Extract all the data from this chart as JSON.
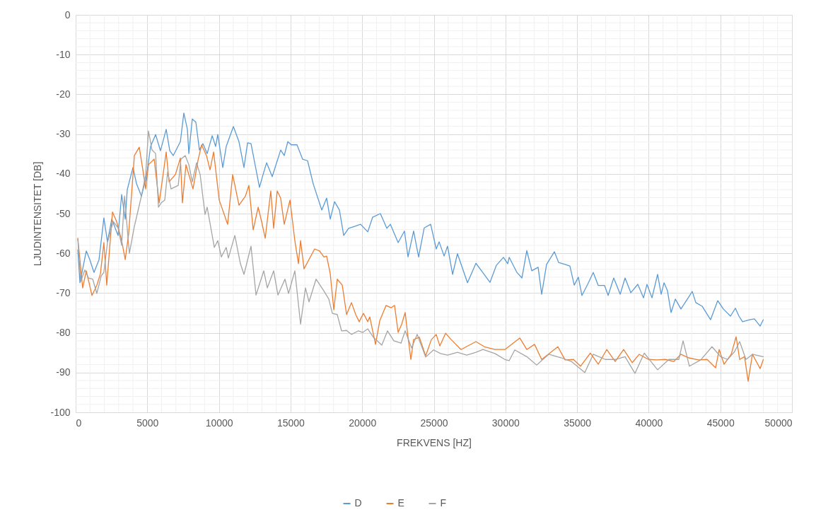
{
  "chart_data": {
    "type": "line",
    "xlabel": "FREKVENS [HZ]",
    "ylabel": "LJUDINTENSITET [DB]",
    "xlim": [
      0,
      50000
    ],
    "ylim": [
      -100,
      0
    ],
    "xticks": [
      0,
      {
        "value": 1000,
        "label": null
      },
      {
        "value": 2000,
        "label": null
      },
      {
        "value": 3000,
        "label": null
      },
      {
        "value": 4000,
        "label": null
      },
      5000,
      {
        "value": 6000,
        "label": null
      },
      {
        "value": 7000,
        "label": null
      },
      {
        "value": 8000,
        "label": null
      },
      {
        "value": 9000,
        "label": null
      },
      10000,
      {
        "value": 11000,
        "label": null
      },
      {
        "value": 12000,
        "label": null
      },
      {
        "value": 13000,
        "label": null
      },
      {
        "value": 14000,
        "label": null
      },
      15000,
      {
        "value": 16000,
        "label": null
      },
      {
        "value": 17000,
        "label": null
      },
      {
        "value": 18000,
        "label": null
      },
      {
        "value": 19000,
        "label": null
      },
      20000,
      {
        "value": 21000,
        "label": null
      },
      {
        "value": 22000,
        "label": null
      },
      {
        "value": 23000,
        "label": null
      },
      {
        "value": 24000,
        "label": null
      },
      25000,
      {
        "value": 26000,
        "label": null
      },
      {
        "value": 27000,
        "label": null
      },
      {
        "value": 28000,
        "label": null
      },
      {
        "value": 29000,
        "label": null
      },
      30000,
      {
        "value": 31000,
        "label": null
      },
      {
        "value": 32000,
        "label": null
      },
      {
        "value": 33000,
        "label": null
      },
      {
        "value": 34000,
        "label": null
      },
      35000,
      {
        "value": 36000,
        "label": null
      },
      {
        "value": 37000,
        "label": null
      },
      {
        "value": 38000,
        "label": null
      },
      {
        "value": 39000,
        "label": null
      },
      40000,
      {
        "value": 41000,
        "label": null
      },
      {
        "value": 42000,
        "label": null
      },
      {
        "value": 43000,
        "label": null
      },
      {
        "value": 44000,
        "label": null
      },
      45000,
      {
        "value": 46000,
        "label": null
      },
      {
        "value": 47000,
        "label": null
      },
      {
        "value": 48000,
        "label": null
      },
      {
        "value": 49000,
        "label": null
      },
      50000
    ],
    "yticks": [
      -100,
      {
        "value": -98,
        "label": null
      },
      {
        "value": -96,
        "label": null
      },
      {
        "value": -94,
        "label": null
      },
      {
        "value": -92,
        "label": null
      },
      -90,
      {
        "value": -88,
        "label": null
      },
      {
        "value": -86,
        "label": null
      },
      {
        "value": -84,
        "label": null
      },
      {
        "value": -82,
        "label": null
      },
      -80,
      {
        "value": -78,
        "label": null
      },
      {
        "value": -76,
        "label": null
      },
      {
        "value": -74,
        "label": null
      },
      {
        "value": -72,
        "label": null
      },
      -70,
      {
        "value": -68,
        "label": null
      },
      {
        "value": -66,
        "label": null
      },
      {
        "value": -64,
        "label": null
      },
      {
        "value": -62,
        "label": null
      },
      -60,
      {
        "value": -58,
        "label": null
      },
      {
        "value": -56,
        "label": null
      },
      {
        "value": -54,
        "label": null
      },
      {
        "value": -52,
        "label": null
      },
      -50,
      {
        "value": -48,
        "label": null
      },
      {
        "value": -46,
        "label": null
      },
      {
        "value": -44,
        "label": null
      },
      {
        "value": -42,
        "label": null
      },
      -40,
      {
        "value": -38,
        "label": null
      },
      {
        "value": -36,
        "label": null
      },
      {
        "value": -34,
        "label": null
      },
      {
        "value": -32,
        "label": null
      },
      -30,
      {
        "value": -28,
        "label": null
      },
      {
        "value": -26,
        "label": null
      },
      {
        "value": -24,
        "label": null
      },
      {
        "value": -22,
        "label": null
      },
      -20,
      {
        "value": -18,
        "label": null
      },
      {
        "value": -16,
        "label": null
      },
      {
        "value": -14,
        "label": null
      },
      {
        "value": -12,
        "label": null
      },
      -10,
      {
        "value": -8,
        "label": null
      },
      {
        "value": -6,
        "label": null
      },
      {
        "value": -4,
        "label": null
      },
      {
        "value": -2,
        "label": null
      },
      0
    ],
    "grid": true,
    "legend": "bottom",
    "series": [
      {
        "name": "D",
        "color": "#5b9bd5",
        "x": [
          150,
          300,
          740,
          990,
          1280,
          1630,
          1970,
          2220,
          2520,
          2960,
          3210,
          3460,
          3600,
          4000,
          4250,
          4590,
          4940,
          5230,
          5580,
          5920,
          6320,
          6570,
          6810,
          7310,
          7550,
          7800,
          7900,
          8140,
          8390,
          8640,
          8880,
          9180,
          9530,
          9770,
          9920,
          10270,
          10510,
          11010,
          11400,
          11750,
          12000,
          12240,
          12830,
          13080,
          13330,
          13720,
          14310,
          14560,
          14810,
          15050,
          15450,
          15840,
          16190,
          16580,
          17180,
          17520,
          17770,
          18070,
          18410,
          18710,
          19050,
          19500,
          19890,
          20390,
          20730,
          21270,
          21720,
          21970,
          22510,
          22950,
          23200,
          23590,
          23940,
          24330,
          24780,
          25170,
          25370,
          25720,
          25960,
          26310,
          26650,
          27350,
          27940,
          28430,
          28920,
          29370,
          29860,
          30160,
          30260,
          30800,
          31150,
          31490,
          31840,
          32280,
          32530,
          32870,
          33420,
          33710,
          34160,
          34500,
          34800,
          35090,
          35340,
          35740,
          36130,
          36480,
          36920,
          37170,
          37560,
          38010,
          38350,
          38750,
          39240,
          39640,
          39880,
          40230,
          40620,
          40870,
          41070,
          41310,
          41560,
          41860,
          42250,
          42700,
          43040,
          43290,
          43730,
          44320,
          44820,
          45210,
          45710,
          46050,
          46300,
          46550,
          47040,
          47380,
          47780,
          48000
        ],
        "values": [
          -59.1,
          -67.4,
          -59.4,
          -61.6,
          -64.8,
          -61.6,
          -51.1,
          -57.1,
          -51.4,
          -55.5,
          -45.2,
          -51.4,
          -44.0,
          -38.4,
          -42.5,
          -45.6,
          -40.7,
          -33.1,
          -30.1,
          -34.2,
          -28.8,
          -34.2,
          -35.4,
          -31.9,
          -24.7,
          -28.8,
          -34.9,
          -26.2,
          -27.0,
          -34.0,
          -32.4,
          -34.9,
          -30.4,
          -33.1,
          -30.1,
          -38.4,
          -33.1,
          -28.1,
          -31.9,
          -38.4,
          -32.2,
          -32.4,
          -43.4,
          -40.2,
          -37.2,
          -40.7,
          -34.0,
          -35.4,
          -31.9,
          -32.7,
          -32.7,
          -36.3,
          -36.7,
          -42.5,
          -49.1,
          -46.1,
          -51.4,
          -47.0,
          -49.1,
          -55.5,
          -53.7,
          -53.2,
          -52.7,
          -54.6,
          -50.9,
          -50.0,
          -53.7,
          -52.7,
          -57.3,
          -54.4,
          -60.9,
          -54.4,
          -60.9,
          -53.6,
          -52.7,
          -58.9,
          -57.1,
          -60.7,
          -58.2,
          -65.3,
          -60.1,
          -67.4,
          -62.5,
          -64.9,
          -67.3,
          -63.0,
          -61.0,
          -62.6,
          -61.0,
          -64.8,
          -66.2,
          -59.3,
          -64.4,
          -63.5,
          -70.3,
          -62.8,
          -59.6,
          -62.3,
          -62.8,
          -63.2,
          -68.0,
          -66.0,
          -70.6,
          -67.8,
          -64.8,
          -68.1,
          -68.1,
          -70.6,
          -66.2,
          -70.3,
          -66.2,
          -69.9,
          -67.8,
          -71.2,
          -67.8,
          -71.2,
          -65.3,
          -70.3,
          -67.4,
          -69.4,
          -74.9,
          -71.5,
          -74.0,
          -71.5,
          -69.6,
          -72.4,
          -73.3,
          -76.7,
          -71.9,
          -74.0,
          -75.8,
          -73.8,
          -75.8,
          -77.2,
          -76.7,
          -76.5,
          -78.3,
          -76.7
        ]
      },
      {
        "name": "E",
        "color": "#ed7d31",
        "x": [
          150,
          490,
          740,
          1140,
          1480,
          1730,
          1970,
          2170,
          2570,
          2860,
          3210,
          3460,
          3700,
          4100,
          4440,
          4690,
          4890,
          5080,
          5480,
          5830,
          6320,
          6520,
          6960,
          7310,
          7450,
          7700,
          8190,
          8540,
          8790,
          9130,
          9380,
          9630,
          10020,
          10610,
          10960,
          11400,
          11850,
          12090,
          12390,
          12740,
          12980,
          13230,
          13620,
          13820,
          14070,
          14310,
          14560,
          14960,
          15300,
          15550,
          15700,
          15940,
          16680,
          17030,
          17330,
          17520,
          17770,
          18020,
          18260,
          18610,
          18910,
          19250,
          19550,
          19790,
          20090,
          20390,
          20530,
          20930,
          21230,
          21670,
          22010,
          22260,
          22510,
          22760,
          23000,
          23200,
          23400,
          23590,
          23990,
          24430,
          24830,
          25170,
          25420,
          25820,
          26210,
          26900,
          27940,
          28530,
          29270,
          29960,
          31000,
          31490,
          32030,
          32530,
          33660,
          34160,
          34750,
          35240,
          35930,
          36480,
          37070,
          37660,
          38250,
          38850,
          39340,
          39980,
          40570,
          41170,
          41760,
          42250,
          42790,
          43490,
          44080,
          44670,
          44920,
          45260,
          45760,
          46100,
          46350,
          46690,
          46940,
          47240,
          47780,
          48000
        ],
        "values": [
          -56.2,
          -68.7,
          -64.4,
          -70.6,
          -68.0,
          -65.1,
          -57.3,
          -68.0,
          -49.6,
          -52.0,
          -56.8,
          -61.6,
          -55.0,
          -35.4,
          -33.3,
          -39.0,
          -43.8,
          -37.7,
          -36.3,
          -47.3,
          -34.5,
          -42.0,
          -40.2,
          -36.0,
          -47.3,
          -37.7,
          -43.8,
          -36.6,
          -32.7,
          -35.4,
          -39.0,
          -34.5,
          -46.6,
          -52.7,
          -40.2,
          -47.9,
          -45.6,
          -42.9,
          -54.1,
          -48.4,
          -52.0,
          -56.2,
          -44.3,
          -53.7,
          -44.3,
          -46.1,
          -52.7,
          -46.6,
          -56.8,
          -62.6,
          -56.8,
          -63.9,
          -58.9,
          -59.4,
          -60.9,
          -60.7,
          -65.1,
          -74.2,
          -66.5,
          -68.0,
          -75.4,
          -72.4,
          -75.4,
          -77.2,
          -75.1,
          -77.2,
          -76.0,
          -82.9,
          -76.9,
          -73.1,
          -73.7,
          -73.1,
          -79.9,
          -77.8,
          -74.9,
          -81.1,
          -86.7,
          -81.7,
          -81.1,
          -85.8,
          -81.7,
          -80.4,
          -83.3,
          -80.1,
          -81.7,
          -84.2,
          -82.2,
          -83.5,
          -84.2,
          -84.2,
          -81.3,
          -84.2,
          -82.9,
          -86.7,
          -83.5,
          -86.8,
          -86.7,
          -88.4,
          -85.1,
          -87.9,
          -84.2,
          -87.2,
          -84.2,
          -87.5,
          -85.4,
          -86.7,
          -86.8,
          -86.7,
          -87.2,
          -85.4,
          -86.3,
          -86.8,
          -86.7,
          -88.8,
          -84.2,
          -87.9,
          -85.4,
          -81.0,
          -86.7,
          -86.0,
          -92.2,
          -85.4,
          -89.0,
          -86.7
        ]
      },
      {
        "name": "F",
        "color": "#a5a5a5",
        "x": [
          150,
          350,
          640,
          890,
          1190,
          1480,
          1780,
          1970,
          2220,
          2620,
          2960,
          3210,
          3410,
          3750,
          4100,
          4590,
          4890,
          5080,
          5330,
          5580,
          5780,
          5970,
          6220,
          6420,
          6660,
          7160,
          7350,
          7650,
          7900,
          8140,
          8440,
          8690,
          9030,
          9180,
          9680,
          9920,
          10170,
          10510,
          10660,
          11110,
          11500,
          11750,
          12240,
          12590,
          13130,
          13380,
          13820,
          14120,
          14610,
          14860,
          15300,
          15700,
          16040,
          16290,
          16780,
          17280,
          17670,
          17920,
          18260,
          18560,
          18910,
          19250,
          19740,
          20040,
          20390,
          20780,
          21370,
          21770,
          22210,
          22710,
          23000,
          23450,
          23840,
          24430,
          24980,
          25470,
          25960,
          26650,
          27300,
          27940,
          28430,
          29270,
          29960,
          30260,
          30650,
          31490,
          32180,
          33020,
          33910,
          34600,
          35540,
          36130,
          36970,
          37660,
          38350,
          39040,
          39690,
          40620,
          41410,
          42100,
          42400,
          42840,
          43630,
          44420,
          45020,
          45510,
          46000,
          46350,
          46790,
          47240,
          48000
        ],
        "values": [
          -56.4,
          -67.1,
          -64.2,
          -66.2,
          -66.5,
          -70.1,
          -65.7,
          -64.8,
          -57.3,
          -52.0,
          -53.6,
          -58.0,
          -45.6,
          -60.0,
          -53.2,
          -45.6,
          -40.2,
          -29.2,
          -34.0,
          -34.9,
          -48.4,
          -47.3,
          -46.6,
          -39.5,
          -43.8,
          -42.9,
          -36.3,
          -35.4,
          -37.7,
          -42.0,
          -37.2,
          -40.2,
          -50.2,
          -48.4,
          -58.5,
          -56.8,
          -60.9,
          -58.5,
          -61.2,
          -55.5,
          -62.6,
          -65.3,
          -58.2,
          -70.5,
          -64.4,
          -68.7,
          -64.4,
          -70.5,
          -66.5,
          -70.1,
          -64.4,
          -77.8,
          -68.7,
          -72.2,
          -66.5,
          -69.2,
          -71.5,
          -75.1,
          -75.4,
          -79.5,
          -79.4,
          -80.4,
          -79.5,
          -79.9,
          -79.0,
          -81.1,
          -83.1,
          -79.5,
          -82.0,
          -82.6,
          -79.5,
          -83.8,
          -80.4,
          -86.1,
          -84.3,
          -85.2,
          -85.6,
          -84.9,
          -85.6,
          -84.9,
          -84.2,
          -85.2,
          -86.7,
          -87.0,
          -84.3,
          -86.0,
          -88.1,
          -85.4,
          -86.3,
          -87.2,
          -90.0,
          -85.4,
          -86.7,
          -86.7,
          -86.0,
          -90.2,
          -85.1,
          -89.3,
          -86.7,
          -86.7,
          -82.0,
          -88.4,
          -86.8,
          -83.5,
          -86.0,
          -86.7,
          -84.7,
          -82.2,
          -86.7,
          -85.4,
          -86.0
        ]
      }
    ]
  }
}
